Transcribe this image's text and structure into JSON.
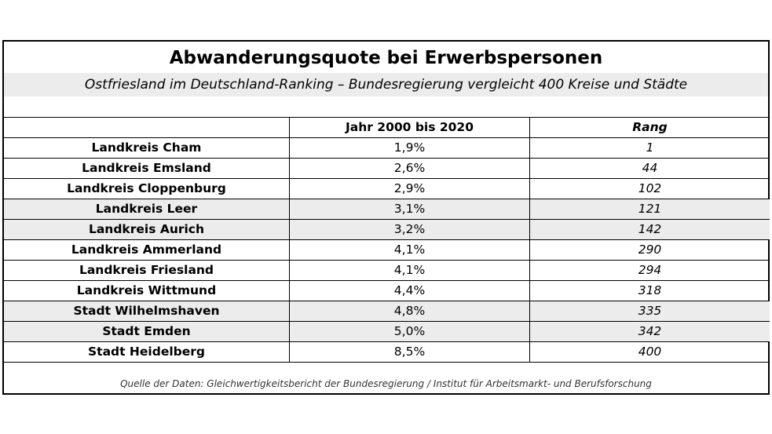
{
  "title": "Abwanderungsquote bei Erwerbspersonen",
  "subtitle": "Ostfriesland im Deutschland-Ranking – Bundesregierung vergleicht 400 Kreise und Städte",
  "table": {
    "headers": [
      "",
      "Jahr 2000 bis 2020",
      "Rang"
    ],
    "rows": [
      {
        "name": "Landkreis Cham",
        "value": "1,9%",
        "rank": "1"
      },
      {
        "name": "Landkreis Emsland",
        "value": "2,6%",
        "rank": "44"
      },
      {
        "name": "Landkreis Cloppenburg",
        "value": "2,9%",
        "rank": "102"
      },
      {
        "name": "Landkreis Leer",
        "value": "3,1%",
        "rank": "121"
      },
      {
        "name": "Landkreis Aurich",
        "value": "3,2%",
        "rank": "142"
      },
      {
        "name": "Landkreis Ammerland",
        "value": "4,1%",
        "rank": "290"
      },
      {
        "name": "Landkreis Friesland",
        "value": "4,1%",
        "rank": "294"
      },
      {
        "name": "Landkreis Wittmund",
        "value": "4,4%",
        "rank": "318"
      },
      {
        "name": "Stadt Wilhelmshaven",
        "value": "4,8%",
        "rank": "335"
      },
      {
        "name": "Stadt Emden",
        "value": "5,0%",
        "rank": "342"
      },
      {
        "name": "Stadt Heidelberg",
        "value": "8,5%",
        "rank": "400"
      }
    ],
    "shaded_rows": [
      3,
      4,
      8,
      9
    ]
  },
  "source": "Quelle der Daten: Gleichwertigkeitsbericht der Bundesregierung / Institut für Arbeitsmarkt- und Berufsforschung",
  "colors": {
    "border": "#000000",
    "shade": "#ececec",
    "background": "#ffffff"
  }
}
